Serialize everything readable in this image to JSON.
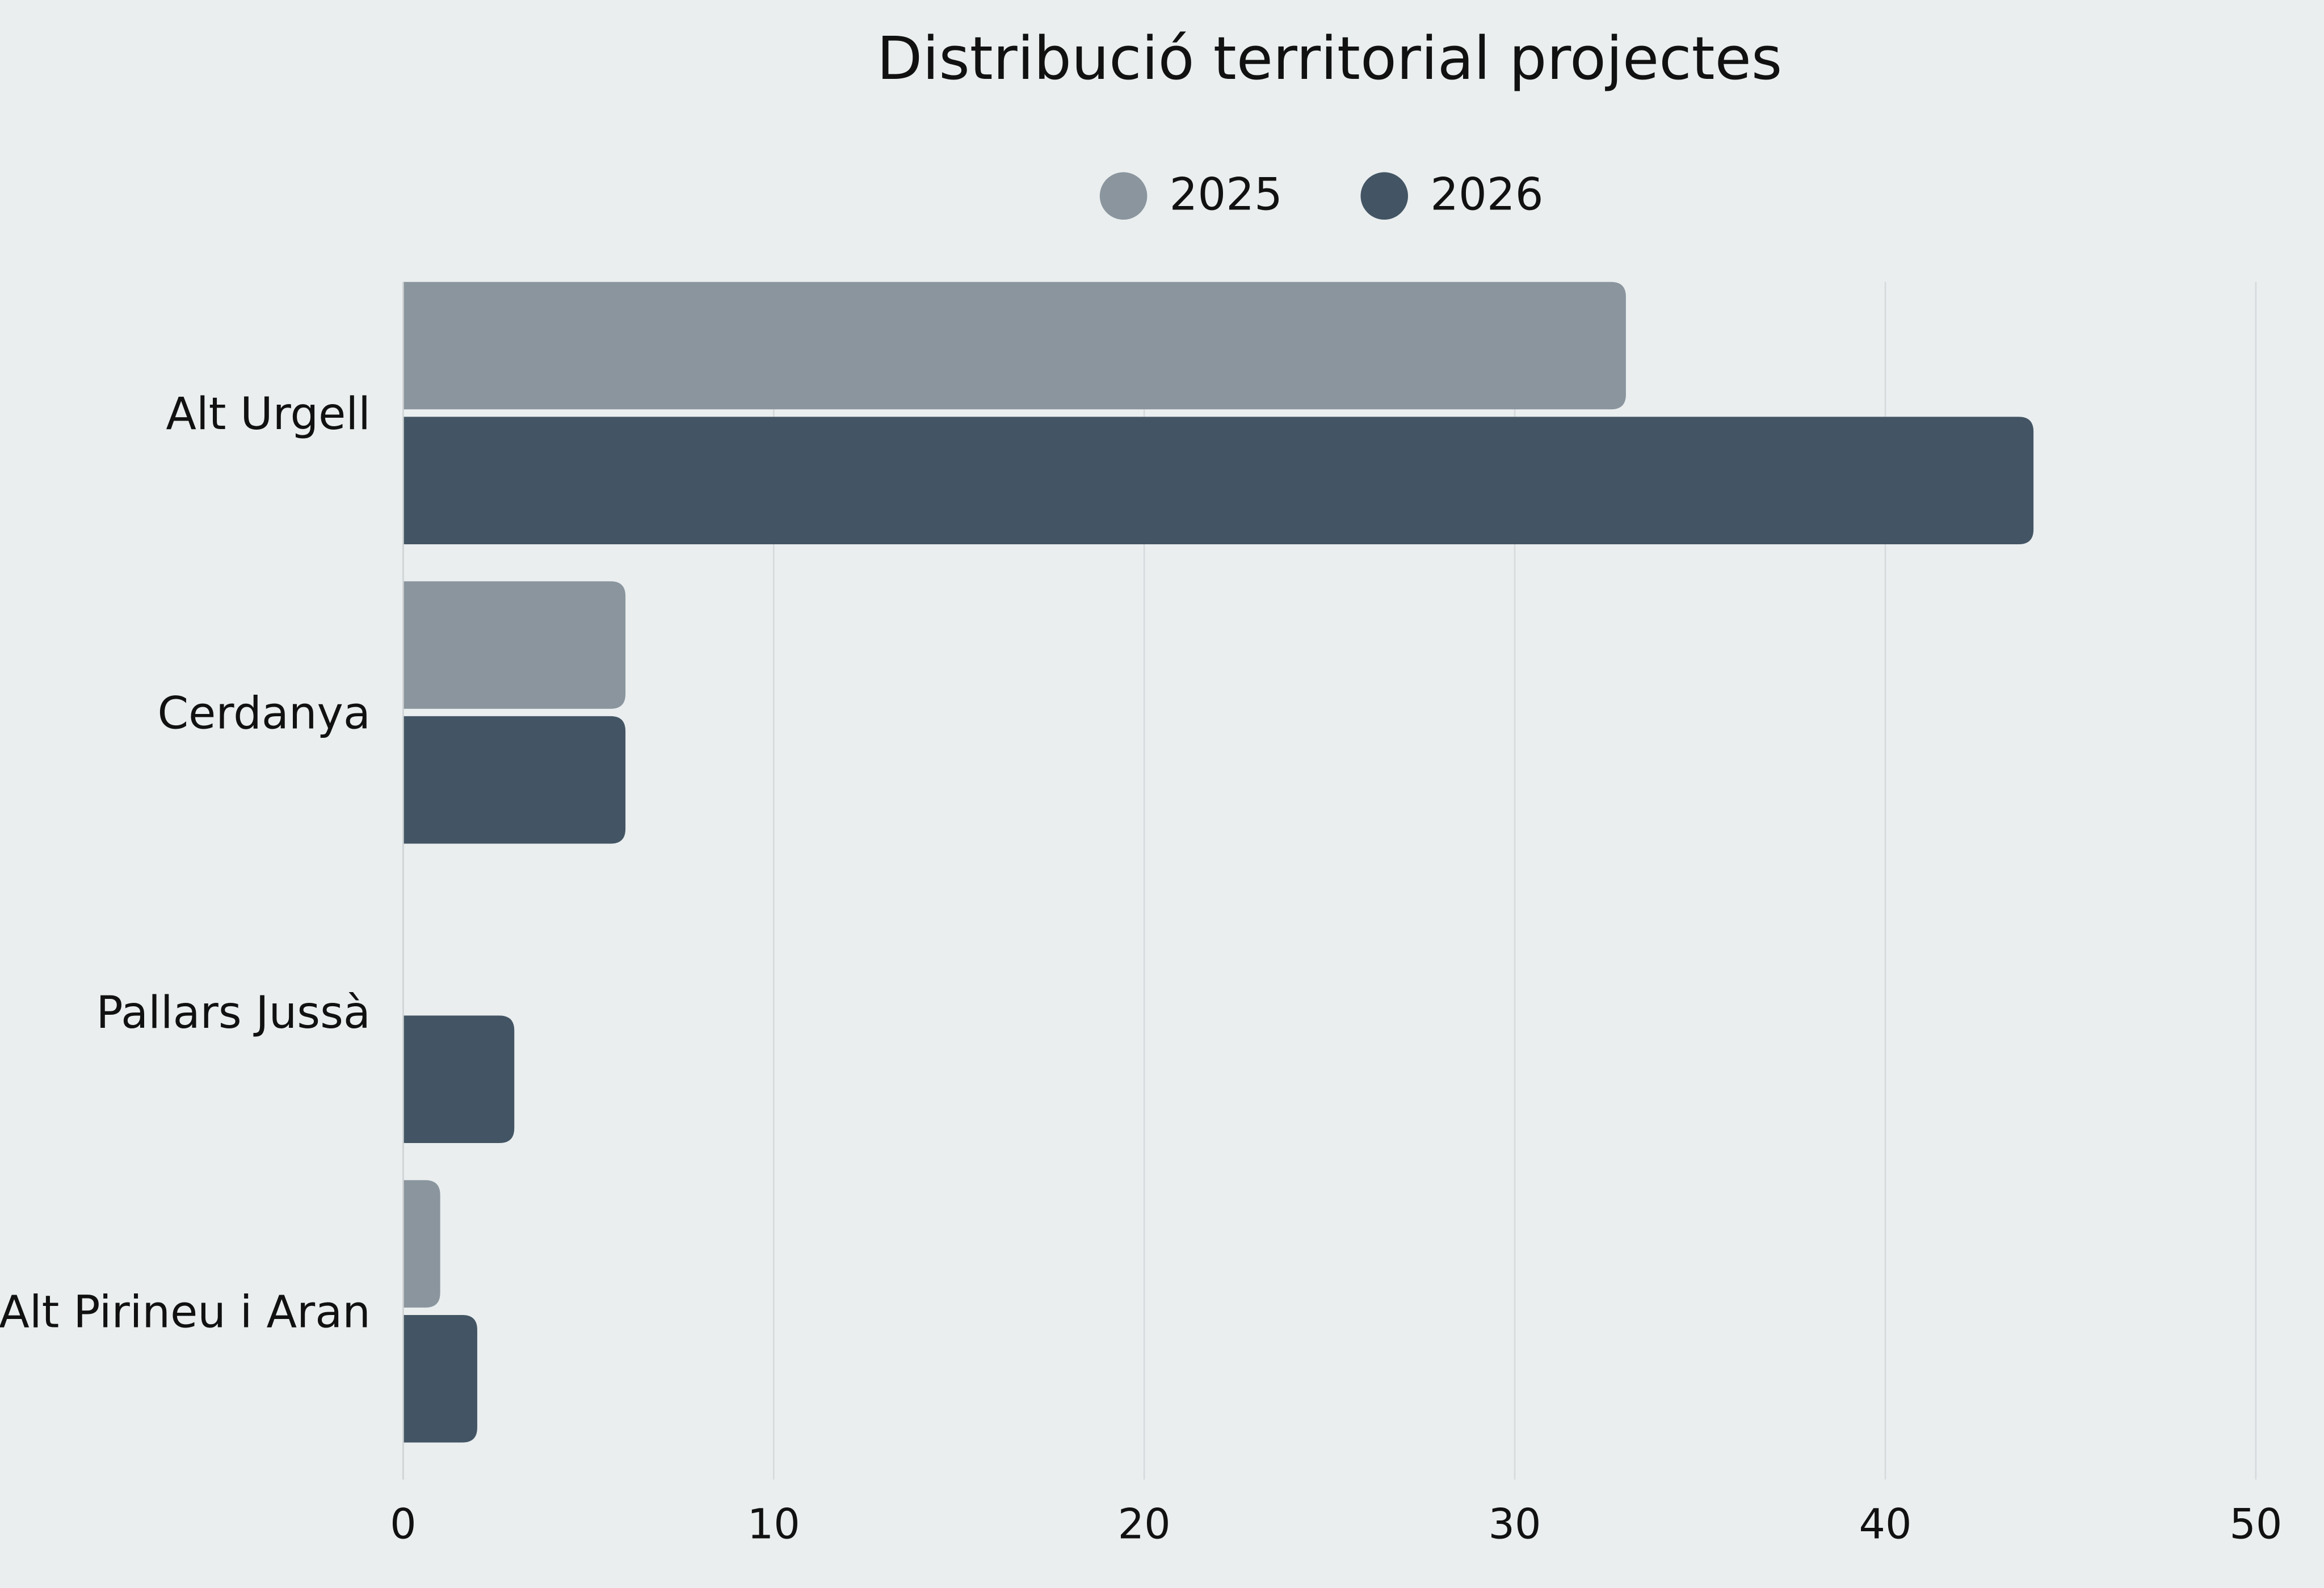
{
  "chart_data": {
    "type": "bar",
    "orientation": "horizontal",
    "title": "Distribució territorial projectes",
    "categories": [
      "Alt Urgell",
      "Cerdanya",
      "Pallars Jussà",
      "Alt Pirineu i Aran"
    ],
    "series": [
      {
        "name": "2025",
        "color": "#8a959e",
        "values": [
          33,
          6,
          0,
          1
        ]
      },
      {
        "name": "2026",
        "color": "#435564",
        "values": [
          44,
          6,
          3,
          2
        ]
      }
    ],
    "xlim": [
      0,
      50
    ],
    "xticks": [
      0,
      10,
      20,
      30,
      40,
      50
    ],
    "grid": true,
    "legend": "top"
  }
}
